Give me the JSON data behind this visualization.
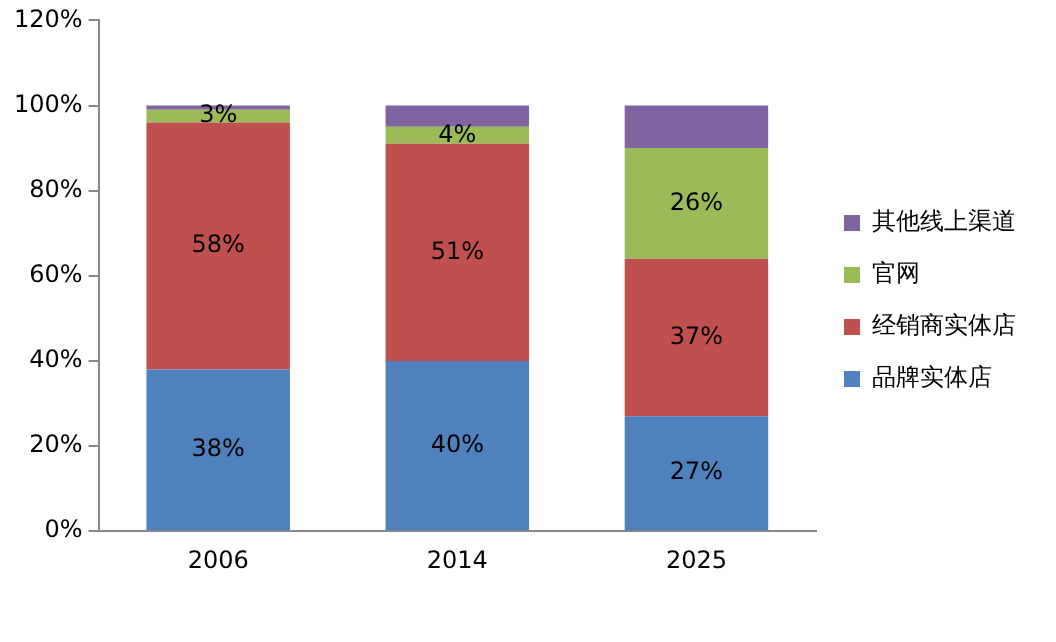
{
  "chart_data": {
    "type": "bar",
    "stacked": true,
    "categories": [
      "2006",
      "2014",
      "2025"
    ],
    "series": [
      {
        "name": "品牌实体店",
        "color": "#4f81bd",
        "values": [
          38,
          40,
          27
        ],
        "value_labels": [
          "38%",
          "40%",
          "27%"
        ]
      },
      {
        "name": "经销商实体店",
        "color": "#c0504d",
        "values": [
          58,
          51,
          37
        ],
        "value_labels": [
          "58%",
          "51%",
          "37%"
        ]
      },
      {
        "name": "官网",
        "color": "#9bbb59",
        "values": [
          3,
          4,
          26
        ],
        "value_labels": [
          "3%",
          "4%",
          "26%"
        ]
      },
      {
        "name": "其他线上渠道",
        "color": "#8064a2",
        "values": [
          1,
          5,
          10
        ],
        "value_labels": [
          null,
          null,
          null
        ]
      }
    ],
    "ylim": [
      0,
      120
    ],
    "yticks": [
      {
        "value": 0,
        "label": "0%"
      },
      {
        "value": 20,
        "label": "20%"
      },
      {
        "value": 40,
        "label": "40%"
      },
      {
        "value": 60,
        "label": "60%"
      },
      {
        "value": 80,
        "label": "80%"
      },
      {
        "value": 100,
        "label": "100%"
      },
      {
        "value": 120,
        "label": "120%"
      }
    ],
    "grid": false,
    "legend": "right"
  }
}
